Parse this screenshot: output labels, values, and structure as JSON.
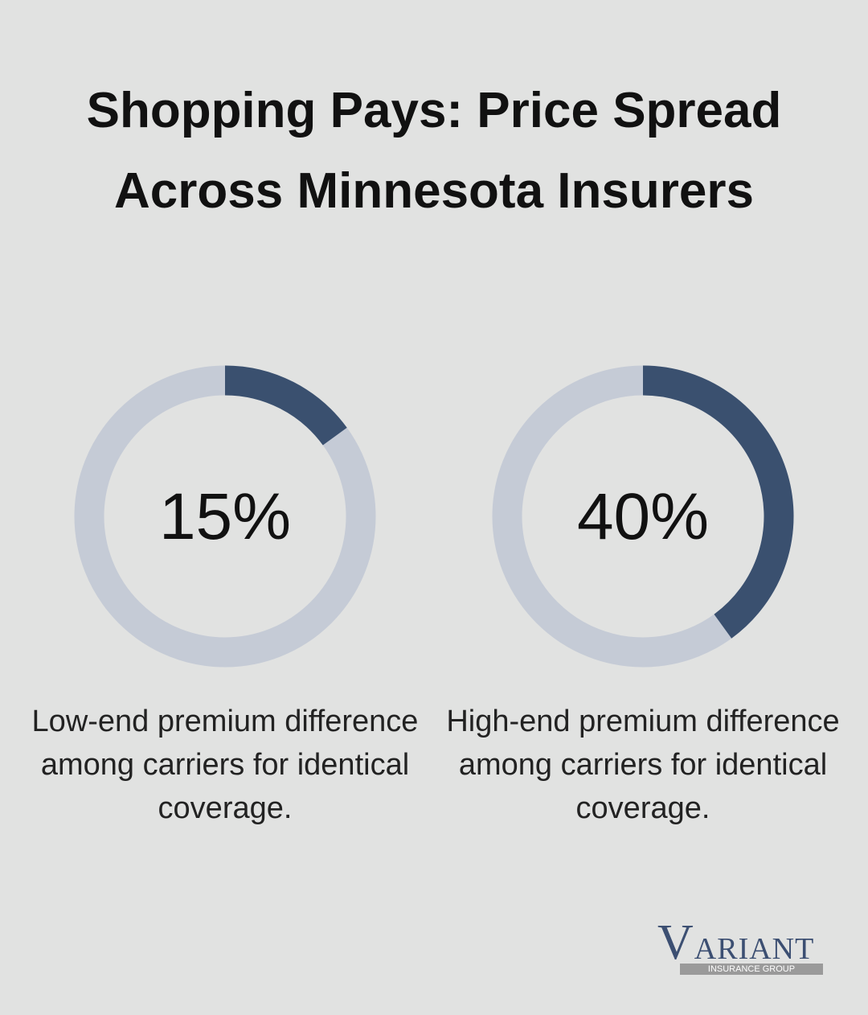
{
  "title": "Shopping Pays: Price Spread Across Minnesota Insurers",
  "chart_data": [
    {
      "type": "donut",
      "values": [
        15
      ],
      "value_labels": [
        "15%"
      ],
      "color": "#3a506f",
      "track_color": "#c5cbd6",
      "caption": "Low-end premium difference among carriers for identical coverage."
    },
    {
      "type": "donut",
      "values": [
        40
      ],
      "value_labels": [
        "40%"
      ],
      "color": "#3a506f",
      "track_color": "#c5cbd6",
      "caption": "High-end premium difference among carriers for identical coverage."
    }
  ],
  "logo": {
    "name": "VARIANT",
    "subtitle": "INSURANCE GROUP"
  }
}
